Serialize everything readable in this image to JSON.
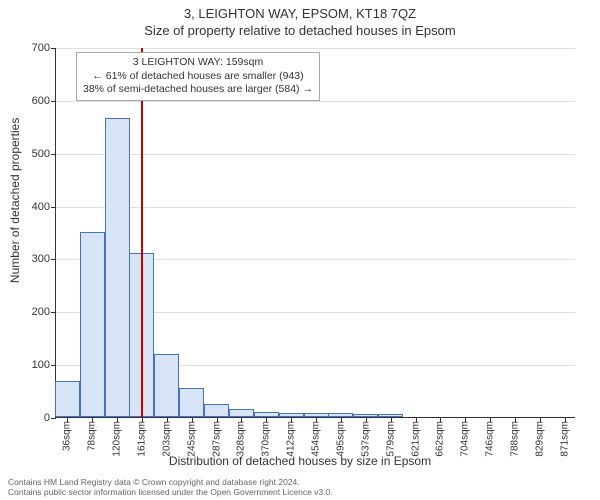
{
  "title_line1": "3, LEIGHTON WAY, EPSOM, KT18 7QZ",
  "title_line2": "Size of property relative to detached houses in Epsom",
  "chart": {
    "type": "histogram",
    "y_axis_title": "Number of detached properties",
    "x_axis_title": "Distribution of detached houses by size in Epsom",
    "ymax": 700,
    "ytick_step": 100,
    "background_color": "#ffffff",
    "grid_color": "#e0e0e0",
    "axis_color": "#333333",
    "bar_fill": "#d6e4f5",
    "bar_border": "#4472c4",
    "marker_color": "#cc0000",
    "marker_x_sqm": 159,
    "x_min_sqm": 17,
    "x_max_sqm": 890,
    "x_tick_labels": [
      "36sqm",
      "78sqm",
      "120sqm",
      "161sqm",
      "203sqm",
      "245sqm",
      "287sqm",
      "328sqm",
      "370sqm",
      "412sqm",
      "454sqm",
      "495sqm",
      "537sqm",
      "579sqm",
      "621sqm",
      "662sqm",
      "704sqm",
      "746sqm",
      "788sqm",
      "829sqm",
      "871sqm"
    ],
    "bars": [
      {
        "sqm": 36,
        "count": 68
      },
      {
        "sqm": 78,
        "count": 350
      },
      {
        "sqm": 120,
        "count": 565
      },
      {
        "sqm": 161,
        "count": 310
      },
      {
        "sqm": 203,
        "count": 120
      },
      {
        "sqm": 245,
        "count": 55
      },
      {
        "sqm": 287,
        "count": 25
      },
      {
        "sqm": 328,
        "count": 15
      },
      {
        "sqm": 370,
        "count": 10
      },
      {
        "sqm": 412,
        "count": 8
      },
      {
        "sqm": 454,
        "count": 8
      },
      {
        "sqm": 495,
        "count": 7
      },
      {
        "sqm": 537,
        "count": 6
      },
      {
        "sqm": 579,
        "count": 5
      }
    ]
  },
  "annotation": {
    "line1": "3 LEIGHTON WAY: 159sqm",
    "line2": "← 61% of detached houses are smaller (943)",
    "line3": "38% of semi-detached houses are larger (584) →"
  },
  "footer": {
    "line1": "Contains HM Land Registry data © Crown copyright and database right 2024.",
    "line2": "Contains public sector information licensed under the Open Government Licence v3.0."
  }
}
